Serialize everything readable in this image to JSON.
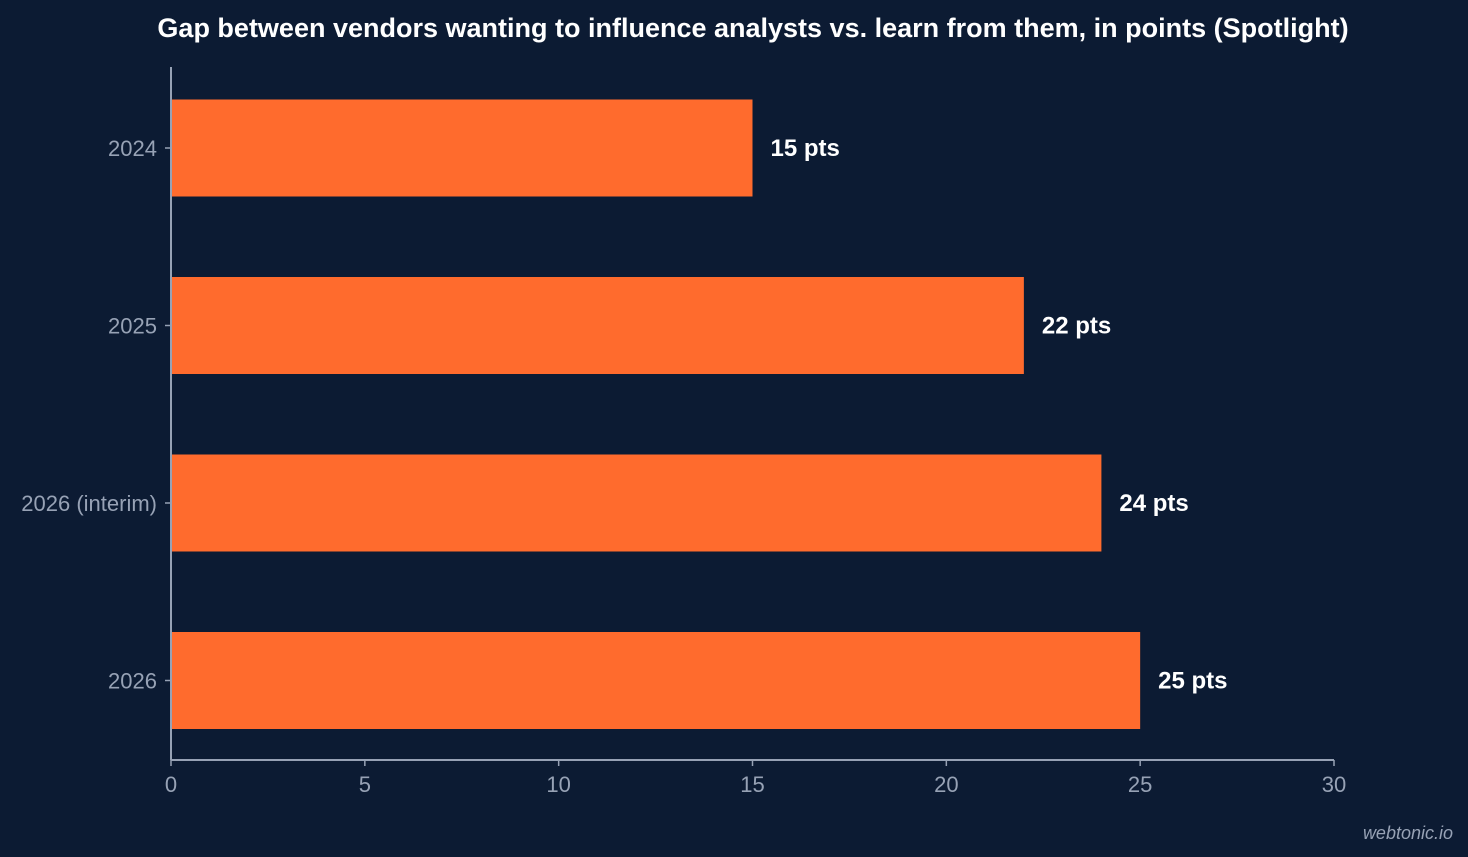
{
  "chart_data": {
    "type": "bar",
    "orientation": "horizontal",
    "title": "Gap between vendors wanting to influence analysts vs. learn from them, in points (Spotlight)",
    "categories": [
      "2024",
      "2025",
      "2026 (interim)",
      "2026"
    ],
    "values": [
      15,
      22,
      24,
      25
    ],
    "data_labels": [
      "15 pts",
      "22 pts",
      "24 pts",
      "25 pts"
    ],
    "xlim": [
      0,
      30
    ],
    "x_ticks": [
      "0",
      "5",
      "10",
      "15",
      "20",
      "25",
      "30"
    ],
    "xlabel": "",
    "ylabel": "",
    "grid": false,
    "legend": "none",
    "bar_color": "#ff6b2d",
    "background_color": "#0c1b33"
  },
  "credit": "webtonic.io"
}
